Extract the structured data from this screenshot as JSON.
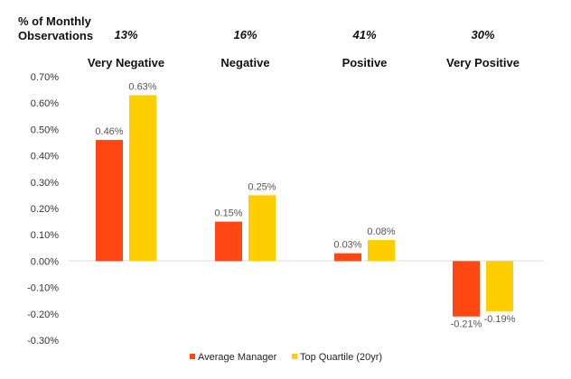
{
  "chart_data": {
    "type": "bar",
    "title": "",
    "header_label": "% of Monthly Observations",
    "header_label_lines": [
      "% of Monthly",
      "Observations"
    ],
    "categories": [
      "Very Negative",
      "Negative",
      "Positive",
      "Very Positive"
    ],
    "observation_pcts": [
      "13%",
      "16%",
      "41%",
      "30%"
    ],
    "series": [
      {
        "name": "Average Manager",
        "color": "#FF4713",
        "values": [
          0.46,
          0.15,
          0.03,
          -0.21
        ],
        "labels": [
          "0.46%",
          "0.15%",
          "0.03%",
          "-0.21%"
        ]
      },
      {
        "name": "Top Quartile (20yr)",
        "color": "#FFCE00",
        "values": [
          0.63,
          0.25,
          0.08,
          -0.19
        ],
        "labels": [
          "0.63%",
          "0.25%",
          "0.08%",
          "-0.19%"
        ]
      }
    ],
    "ylim": [
      -0.3,
      0.7
    ],
    "yticks": [
      "0.70%",
      "0.60%",
      "0.50%",
      "0.40%",
      "0.30%",
      "0.20%",
      "0.10%",
      "0.00%",
      "-0.10%",
      "-0.20%",
      "-0.30%"
    ],
    "ytick_values": [
      0.7,
      0.6,
      0.5,
      0.4,
      0.3,
      0.2,
      0.1,
      0.0,
      -0.1,
      -0.2,
      -0.3
    ],
    "xlabel": "",
    "ylabel": "",
    "grid": false,
    "legend_position": "bottom"
  }
}
